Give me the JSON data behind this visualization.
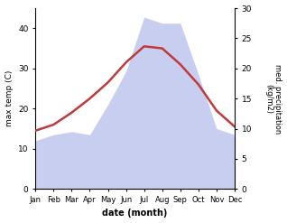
{
  "months": [
    "Jan",
    "Feb",
    "Mar",
    "Apr",
    "May",
    "Jun",
    "Jul",
    "Aug",
    "Sep",
    "Oct",
    "Nov",
    "Dec"
  ],
  "temp_max": [
    14.5,
    16.0,
    19.0,
    22.5,
    26.5,
    31.5,
    35.5,
    35.0,
    31.0,
    26.0,
    19.5,
    15.5
  ],
  "precipitation": [
    8.0,
    9.0,
    9.5,
    9.0,
    14.0,
    19.5,
    28.5,
    27.5,
    27.5,
    19.0,
    10.0,
    9.0
  ],
  "temp_color": "#c0393b",
  "precip_fill_color": "#aab4e8",
  "precip_fill_alpha": 0.65,
  "temp_ylim": [
    0,
    45
  ],
  "precip_ylim": [
    0,
    30
  ],
  "temp_yticks": [
    0,
    10,
    20,
    30,
    40
  ],
  "precip_yticks": [
    0,
    5,
    10,
    15,
    20,
    25,
    30
  ],
  "ylabel_left": "max temp (C)",
  "ylabel_right": "med. precipitation\n(kg/m2)",
  "xlabel": "date (month)",
  "background_color": "#ffffff"
}
